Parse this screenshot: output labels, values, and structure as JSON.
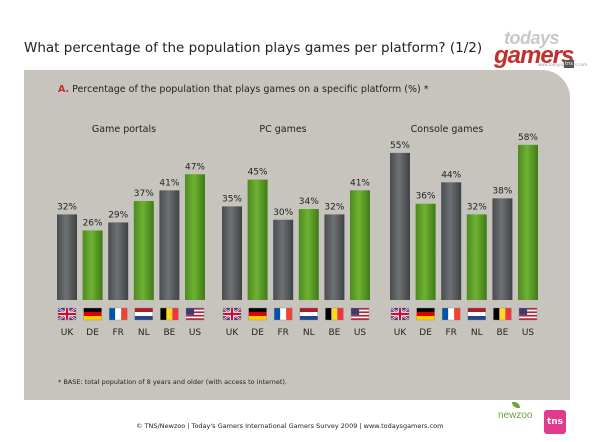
{
  "page": {
    "title": "What percentage of the population plays games per platform? (1/2)",
    "subtitle_letter": "A.",
    "subtitle": "Percentage of the population that plays games on a specific platform (%) *",
    "footnote": "* BASE: total population of 8 years and older (with access to internet).",
    "credit": "© TNS/Newzoo | Today's Gamers International Gamers Survey 2009 | www.todaysgamers.com"
  },
  "logos": {
    "todaysgamers_line1": "todays",
    "todaysgamers_line2": "gamers",
    "todaysgamers_small": "www.todaysgamers.com",
    "todaysgamers_badge": "tns",
    "newzoo": "newzoo",
    "tns": "tns"
  },
  "colors": {
    "panel": "#c7c4be",
    "grey_bar": "#5d6063",
    "green_bar": "#5a9a26",
    "accent": "#c0312b"
  },
  "chart_data": [
    {
      "type": "bar",
      "title": "Game portals",
      "categories": [
        "UK",
        "DE",
        "FR",
        "NL",
        "BE",
        "US"
      ],
      "values": [
        32,
        26,
        29,
        37,
        41,
        47
      ],
      "value_labels": [
        "32%",
        "26%",
        "29%",
        "37%",
        "41%",
        "47%"
      ],
      "bar_colors": [
        "grey",
        "green",
        "grey",
        "green",
        "grey",
        "green"
      ],
      "ylim": [
        0,
        60
      ]
    },
    {
      "type": "bar",
      "title": "PC games",
      "categories": [
        "UK",
        "DE",
        "FR",
        "NL",
        "BE",
        "US"
      ],
      "values": [
        35,
        45,
        30,
        34,
        32,
        41
      ],
      "value_labels": [
        "35%",
        "45%",
        "30%",
        "34%",
        "32%",
        "41%"
      ],
      "bar_colors": [
        "grey",
        "green",
        "grey",
        "green",
        "grey",
        "green"
      ],
      "ylim": [
        0,
        60
      ]
    },
    {
      "type": "bar",
      "title": "Console games",
      "categories": [
        "UK",
        "DE",
        "FR",
        "NL",
        "BE",
        "US"
      ],
      "values": [
        55,
        36,
        44,
        32,
        38,
        58
      ],
      "value_labels": [
        "55%",
        "36%",
        "44%",
        "32%",
        "38%",
        "58%"
      ],
      "bar_colors": [
        "grey",
        "green",
        "grey",
        "green",
        "grey",
        "green"
      ],
      "ylim": [
        0,
        60
      ]
    }
  ]
}
